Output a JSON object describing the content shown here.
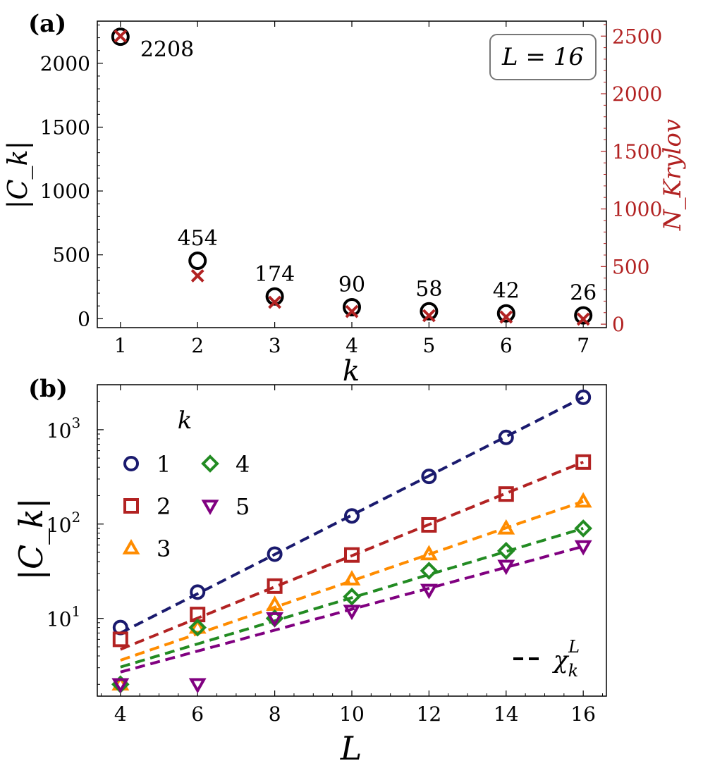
{
  "chart_data": [
    {
      "panel": "(a)",
      "type": "scatter",
      "xlabel": "k",
      "ylabel_left": "|C_k|",
      "ylabel_right": "N_Krylov",
      "x_ticks": [
        1,
        2,
        3,
        4,
        5,
        6,
        7
      ],
      "left_ylim": [
        -70,
        2330
      ],
      "left_yticks": [
        0,
        500,
        1000,
        1500,
        2000
      ],
      "right_ylim": [
        -30,
        2630
      ],
      "right_yticks": [
        0,
        500,
        1000,
        1500,
        2000,
        2500
      ],
      "annotation": "L = 16",
      "series": [
        {
          "name": "|C_k|",
          "marker": "circle",
          "color": "#000000",
          "x": [
            1,
            2,
            3,
            4,
            5,
            6,
            7
          ],
          "values": [
            2208,
            454,
            174,
            90,
            58,
            42,
            26
          ],
          "labels": [
            "2208",
            "454",
            "174",
            "90",
            "58",
            "42",
            "26"
          ]
        },
        {
          "name": "N_Krylov",
          "marker": "x",
          "color": "#b22222",
          "x": [
            1,
            2,
            3,
            4,
            5,
            6,
            7
          ],
          "values": [
            2500,
            420,
            190,
            110,
            74,
            62,
            44
          ]
        }
      ]
    },
    {
      "panel": "(b)",
      "type": "scatter",
      "xlabel": "L",
      "ylabel": "|C_k|",
      "yscale": "log",
      "xlim": [
        3.4,
        16.6
      ],
      "ylim": [
        1.5,
        3000
      ],
      "x_ticks": [
        4,
        6,
        8,
        10,
        12,
        14,
        16
      ],
      "y_ticks": [
        10,
        100,
        1000
      ],
      "y_tick_bases": [
        "10",
        "10",
        "10"
      ],
      "y_tick_exps": [
        "1",
        "2",
        "3"
      ],
      "legend_title": "k",
      "fit_label_base": "χ",
      "fit_label_sub": "k",
      "fit_label_sup": "L",
      "series": [
        {
          "name": "1",
          "marker": "circle",
          "color": "#1a1a6e",
          "x": [
            4,
            6,
            8,
            10,
            12,
            14,
            16
          ],
          "values": [
            8,
            19,
            48,
            122,
            320,
            830,
            2208
          ],
          "fit": [
            7,
            2208
          ]
        },
        {
          "name": "2",
          "marker": "square",
          "color": "#b22222",
          "x": [
            4,
            6,
            8,
            10,
            12,
            14,
            16
          ],
          "values": [
            6,
            11,
            22,
            47,
            98,
            208,
            454
          ],
          "fit": [
            4.7,
            454
          ]
        },
        {
          "name": "3",
          "marker": "triangle-up",
          "color": "#ff8c00",
          "x": [
            4,
            6,
            8,
            10,
            12,
            14,
            16
          ],
          "values": [
            2,
            8,
            14,
            26,
            48,
            90,
            174
          ],
          "fit": [
            3.6,
            174
          ]
        },
        {
          "name": "4",
          "marker": "diamond",
          "color": "#228b22",
          "x": [
            4,
            6,
            8,
            10,
            12,
            14,
            16
          ],
          "values": [
            2,
            8,
            10,
            17,
            32,
            52,
            90
          ],
          "fit": [
            3.05,
            90
          ]
        },
        {
          "name": "5",
          "marker": "triangle-down",
          "color": "#800080",
          "x": [
            4,
            6,
            8,
            10,
            12,
            14,
            16
          ],
          "values": [
            2,
            2,
            10,
            12,
            20,
            36,
            58
          ],
          "fit": [
            2.7,
            58
          ]
        }
      ]
    }
  ]
}
